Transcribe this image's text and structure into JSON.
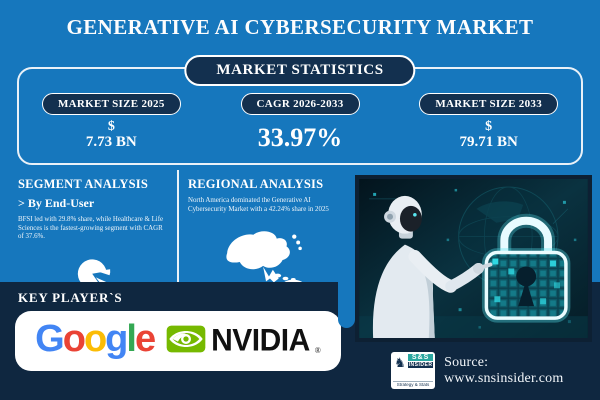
{
  "title": "GENERATIVE AI CYBERSECURITY MARKET",
  "market_statistics": {
    "heading": "MARKET STATISTICS",
    "cards": [
      {
        "label": "MARKET SIZE 2025",
        "currency": "$",
        "value": "7.73 BN"
      },
      {
        "label": "CAGR 2026-2033",
        "value": "33.97%"
      },
      {
        "label": "MARKET SIZE 2033",
        "currency": "$",
        "value": "79.71 BN"
      }
    ]
  },
  "segment_analysis": {
    "heading": "SEGMENT ANALYSIS",
    "subheading": "> By End-User",
    "description": "BFSI led with 29.8% share, while Healthcare & Life Sciences is the fastest-growing segment with CAGR of 37.6%.",
    "icon": "pie-chart-icon"
  },
  "regional_analysis": {
    "heading": "REGIONAL ANALYSIS",
    "description": "North America dominated the Generative AI Cybersecurity Market with a 42.24% share in 2025",
    "icon": "asia-pacific-map-icon"
  },
  "illustration": {
    "alt": "ai-robot-touching-glowing-cyber-padlock"
  },
  "key_players": {
    "heading": "KEY PLAYER`S",
    "google": {
      "name": "Google",
      "letters": [
        {
          "ch": "G",
          "color": "#4285F4"
        },
        {
          "ch": "o",
          "color": "#EA4335"
        },
        {
          "ch": "o",
          "color": "#FBBC05"
        },
        {
          "ch": "g",
          "color": "#4285F4"
        },
        {
          "ch": "l",
          "color": "#34A853"
        },
        {
          "ch": "e",
          "color": "#EA4335"
        }
      ]
    },
    "nvidia": {
      "name": "NVIDIA",
      "registered_mark": "®",
      "brand_green": "#76B900"
    }
  },
  "source": {
    "label": "Source:",
    "url": "www.snsinsider.com",
    "logo": {
      "knight": "♞",
      "text_top": "S&S",
      "text_mid": "INSIDER",
      "text_bottom": "Strategy & Stats"
    }
  },
  "colors": {
    "background_blue": "#1677BD",
    "panel_navy": "#13304F",
    "band_navy": "#0F2740",
    "cyber_cyan": "#3FDDE8",
    "text_white": "#FFFFFF"
  }
}
